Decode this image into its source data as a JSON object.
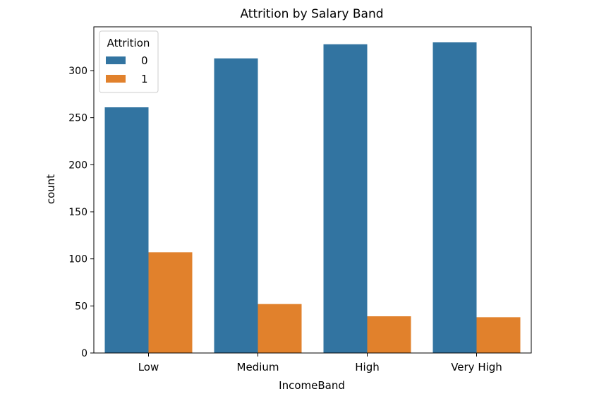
{
  "chart_data": {
    "type": "bar",
    "title": "Attrition by Salary Band",
    "xlabel": "IncomeBand",
    "ylabel": "count",
    "categories": [
      "Low",
      "Medium",
      "High",
      "Very High"
    ],
    "series": [
      {
        "name": "0",
        "color": "#3274a1",
        "values": [
          261,
          313,
          328,
          330
        ]
      },
      {
        "name": "1",
        "color": "#e1812c",
        "values": [
          107,
          52,
          39,
          38
        ]
      }
    ],
    "ylim": [
      0,
      346.5
    ],
    "yticks": [
      0,
      50,
      100,
      150,
      200,
      250,
      300
    ],
    "legend": {
      "title": "Attrition",
      "placement": "top-left"
    },
    "grid": false
  }
}
